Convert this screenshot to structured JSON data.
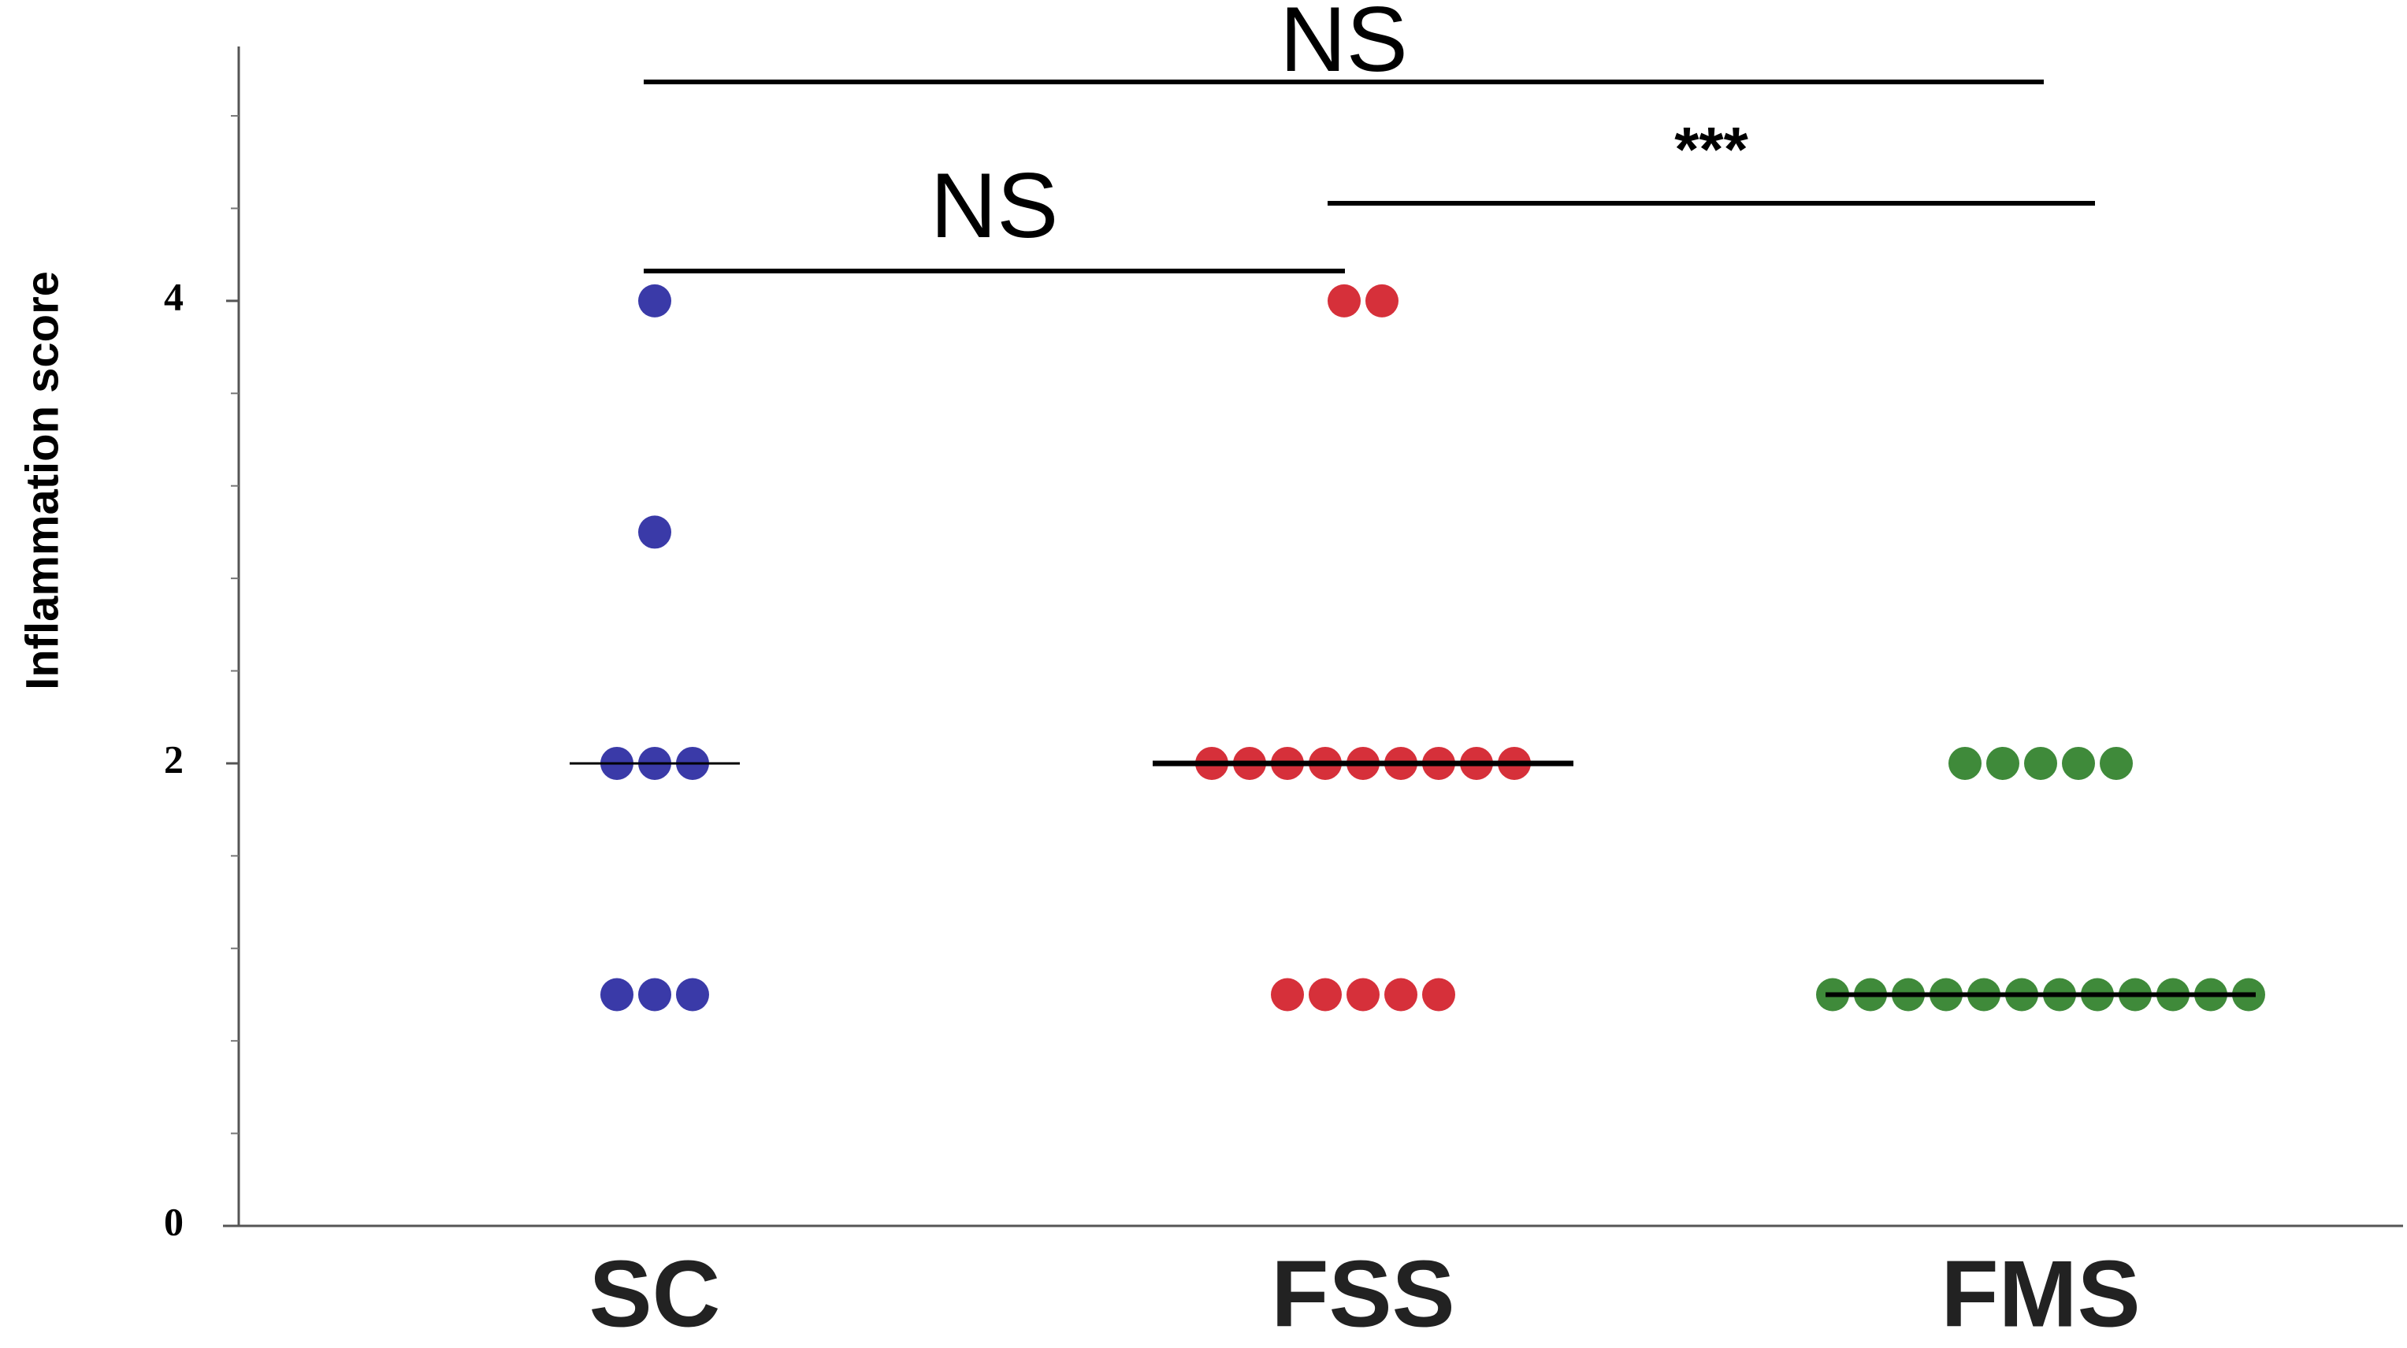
{
  "chart_data": {
    "type": "dot",
    "y_label": "Inflammation score",
    "categories": [
      "SC",
      "FSS",
      "FMS"
    ],
    "groups": [
      {
        "color": "#3a3aa8",
        "values": [
          4,
          3,
          2,
          2,
          2,
          1,
          1,
          1
        ],
        "median": 2
      },
      {
        "color": "#d6303a",
        "values": [
          4,
          4,
          2,
          2,
          2,
          2,
          2,
          2,
          2,
          2,
          2,
          1,
          1,
          1,
          1,
          1
        ],
        "median": 2
      },
      {
        "color": "#3f8a3a",
        "values": [
          2,
          2,
          2,
          2,
          2,
          1,
          1,
          1,
          1,
          1,
          1,
          1,
          1,
          1,
          1,
          1,
          1
        ],
        "median": 1
      }
    ],
    "ylim": [
      0,
      5.1
    ],
    "yticks": [
      0,
      2,
      4
    ],
    "minor_yticks": [
      0.4,
      0.8,
      1.2,
      1.6,
      2.4,
      2.8,
      3.2,
      3.6,
      4.4,
      4.8
    ],
    "annotations": [
      {
        "text": "NS",
        "from": 0,
        "to": 2
      },
      {
        "text": "NS",
        "from": 0,
        "to": 1
      },
      {
        "text": "***",
        "from": 1,
        "to": 2
      }
    ]
  }
}
